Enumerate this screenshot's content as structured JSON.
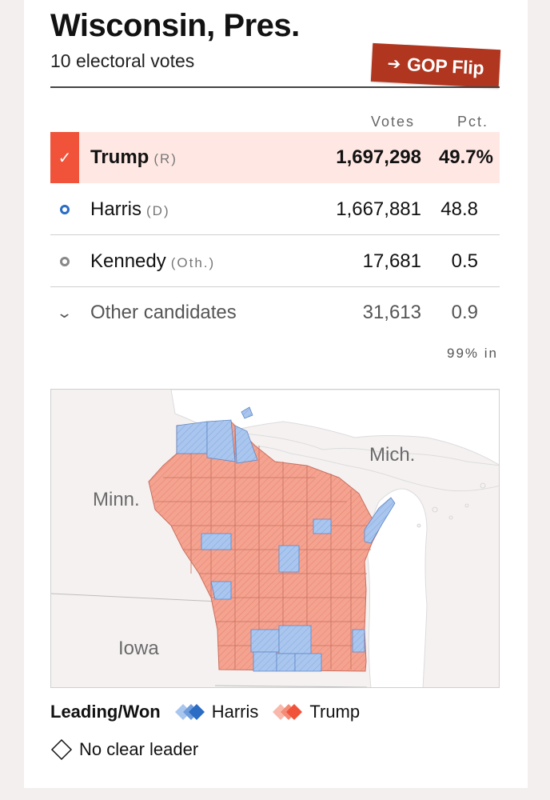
{
  "header": {
    "title": "Wisconsin, Pres.",
    "subtitle": "10 electoral votes",
    "flip_badge": "GOP Flip"
  },
  "table": {
    "columns": {
      "votes": "Votes",
      "pct": "Pct."
    },
    "rows": [
      {
        "name": "Trump",
        "party": "(R)",
        "votes": "1,697,298",
        "pct": "49.7%",
        "winner": true
      },
      {
        "name": "Harris",
        "party": "(D)",
        "votes": "1,667,881",
        "pct": "48.8"
      },
      {
        "name": "Kennedy",
        "party": "(Oth.)",
        "votes": "17,681",
        "pct": "0.5"
      },
      {
        "name": "Other candidates",
        "party": "",
        "votes": "31,613",
        "pct": "0.9"
      }
    ],
    "reporting": "99% in"
  },
  "map": {
    "labels": {
      "minn": "Minn.",
      "mich": "Mich.",
      "iowa": "Iowa"
    },
    "colors": {
      "trump": "#f4a08f",
      "harris": "#a9c6ee",
      "water": "#ffffff",
      "land": "#f5f1f1"
    }
  },
  "legend": {
    "title": "Leading/Won",
    "harris": "Harris",
    "trump": "Trump",
    "no_leader": "No clear leader"
  },
  "colors": {
    "trump": "#f0533a",
    "harris": "#2b6cc4",
    "flip": "#b0361f"
  }
}
